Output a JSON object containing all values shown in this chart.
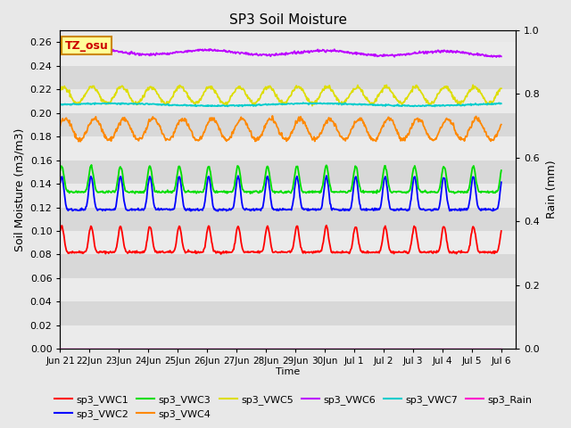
{
  "title": "SP3 Soil Moisture",
  "xlabel": "Time",
  "ylabel_left": "Soil Moisture (m3/m3)",
  "ylabel_right": "Rain (mm)",
  "ylim_left": [
    0.0,
    0.27
  ],
  "ylim_right": [
    0.0,
    1.0
  ],
  "xlim": [
    0,
    15.5
  ],
  "yticks_left": [
    0.0,
    0.02,
    0.04,
    0.06,
    0.08,
    0.1,
    0.12,
    0.14,
    0.16,
    0.18,
    0.2,
    0.22,
    0.24,
    0.26
  ],
  "yticks_right": [
    0.0,
    0.2,
    0.4,
    0.6,
    0.8,
    1.0
  ],
  "background_color": "#e8e8e8",
  "stripe_light": "#ebebeb",
  "stripe_dark": "#d8d8d8",
  "xtick_labels": [
    "Jun 21",
    "Jun 22",
    "Jun 23",
    "Jun 24",
    "Jun 25",
    "Jun 26",
    "Jun 27",
    "Jun 28",
    "Jun 29",
    "Jun 30",
    "Jul 1",
    "Jul 2",
    "Jul 3",
    "Jul 4",
    "Jul 5",
    "Jul 6"
  ],
  "xtick_positions": [
    0,
    1,
    2,
    3,
    4,
    5,
    6,
    7,
    8,
    9,
    10,
    11,
    12,
    13,
    14,
    15
  ],
  "vwc1_color": "#ff0000",
  "vwc2_color": "#0000ff",
  "vwc3_color": "#00dd00",
  "vwc4_color": "#ff8800",
  "vwc5_color": "#dddd00",
  "vwc6_color": "#bb00ff",
  "vwc7_color": "#00cccc",
  "rain_color": "#ff00cc",
  "annotation_text": "TZ_osu",
  "annotation_bg": "#ffff99",
  "annotation_border": "#cc8800",
  "annotation_color": "#cc0000"
}
